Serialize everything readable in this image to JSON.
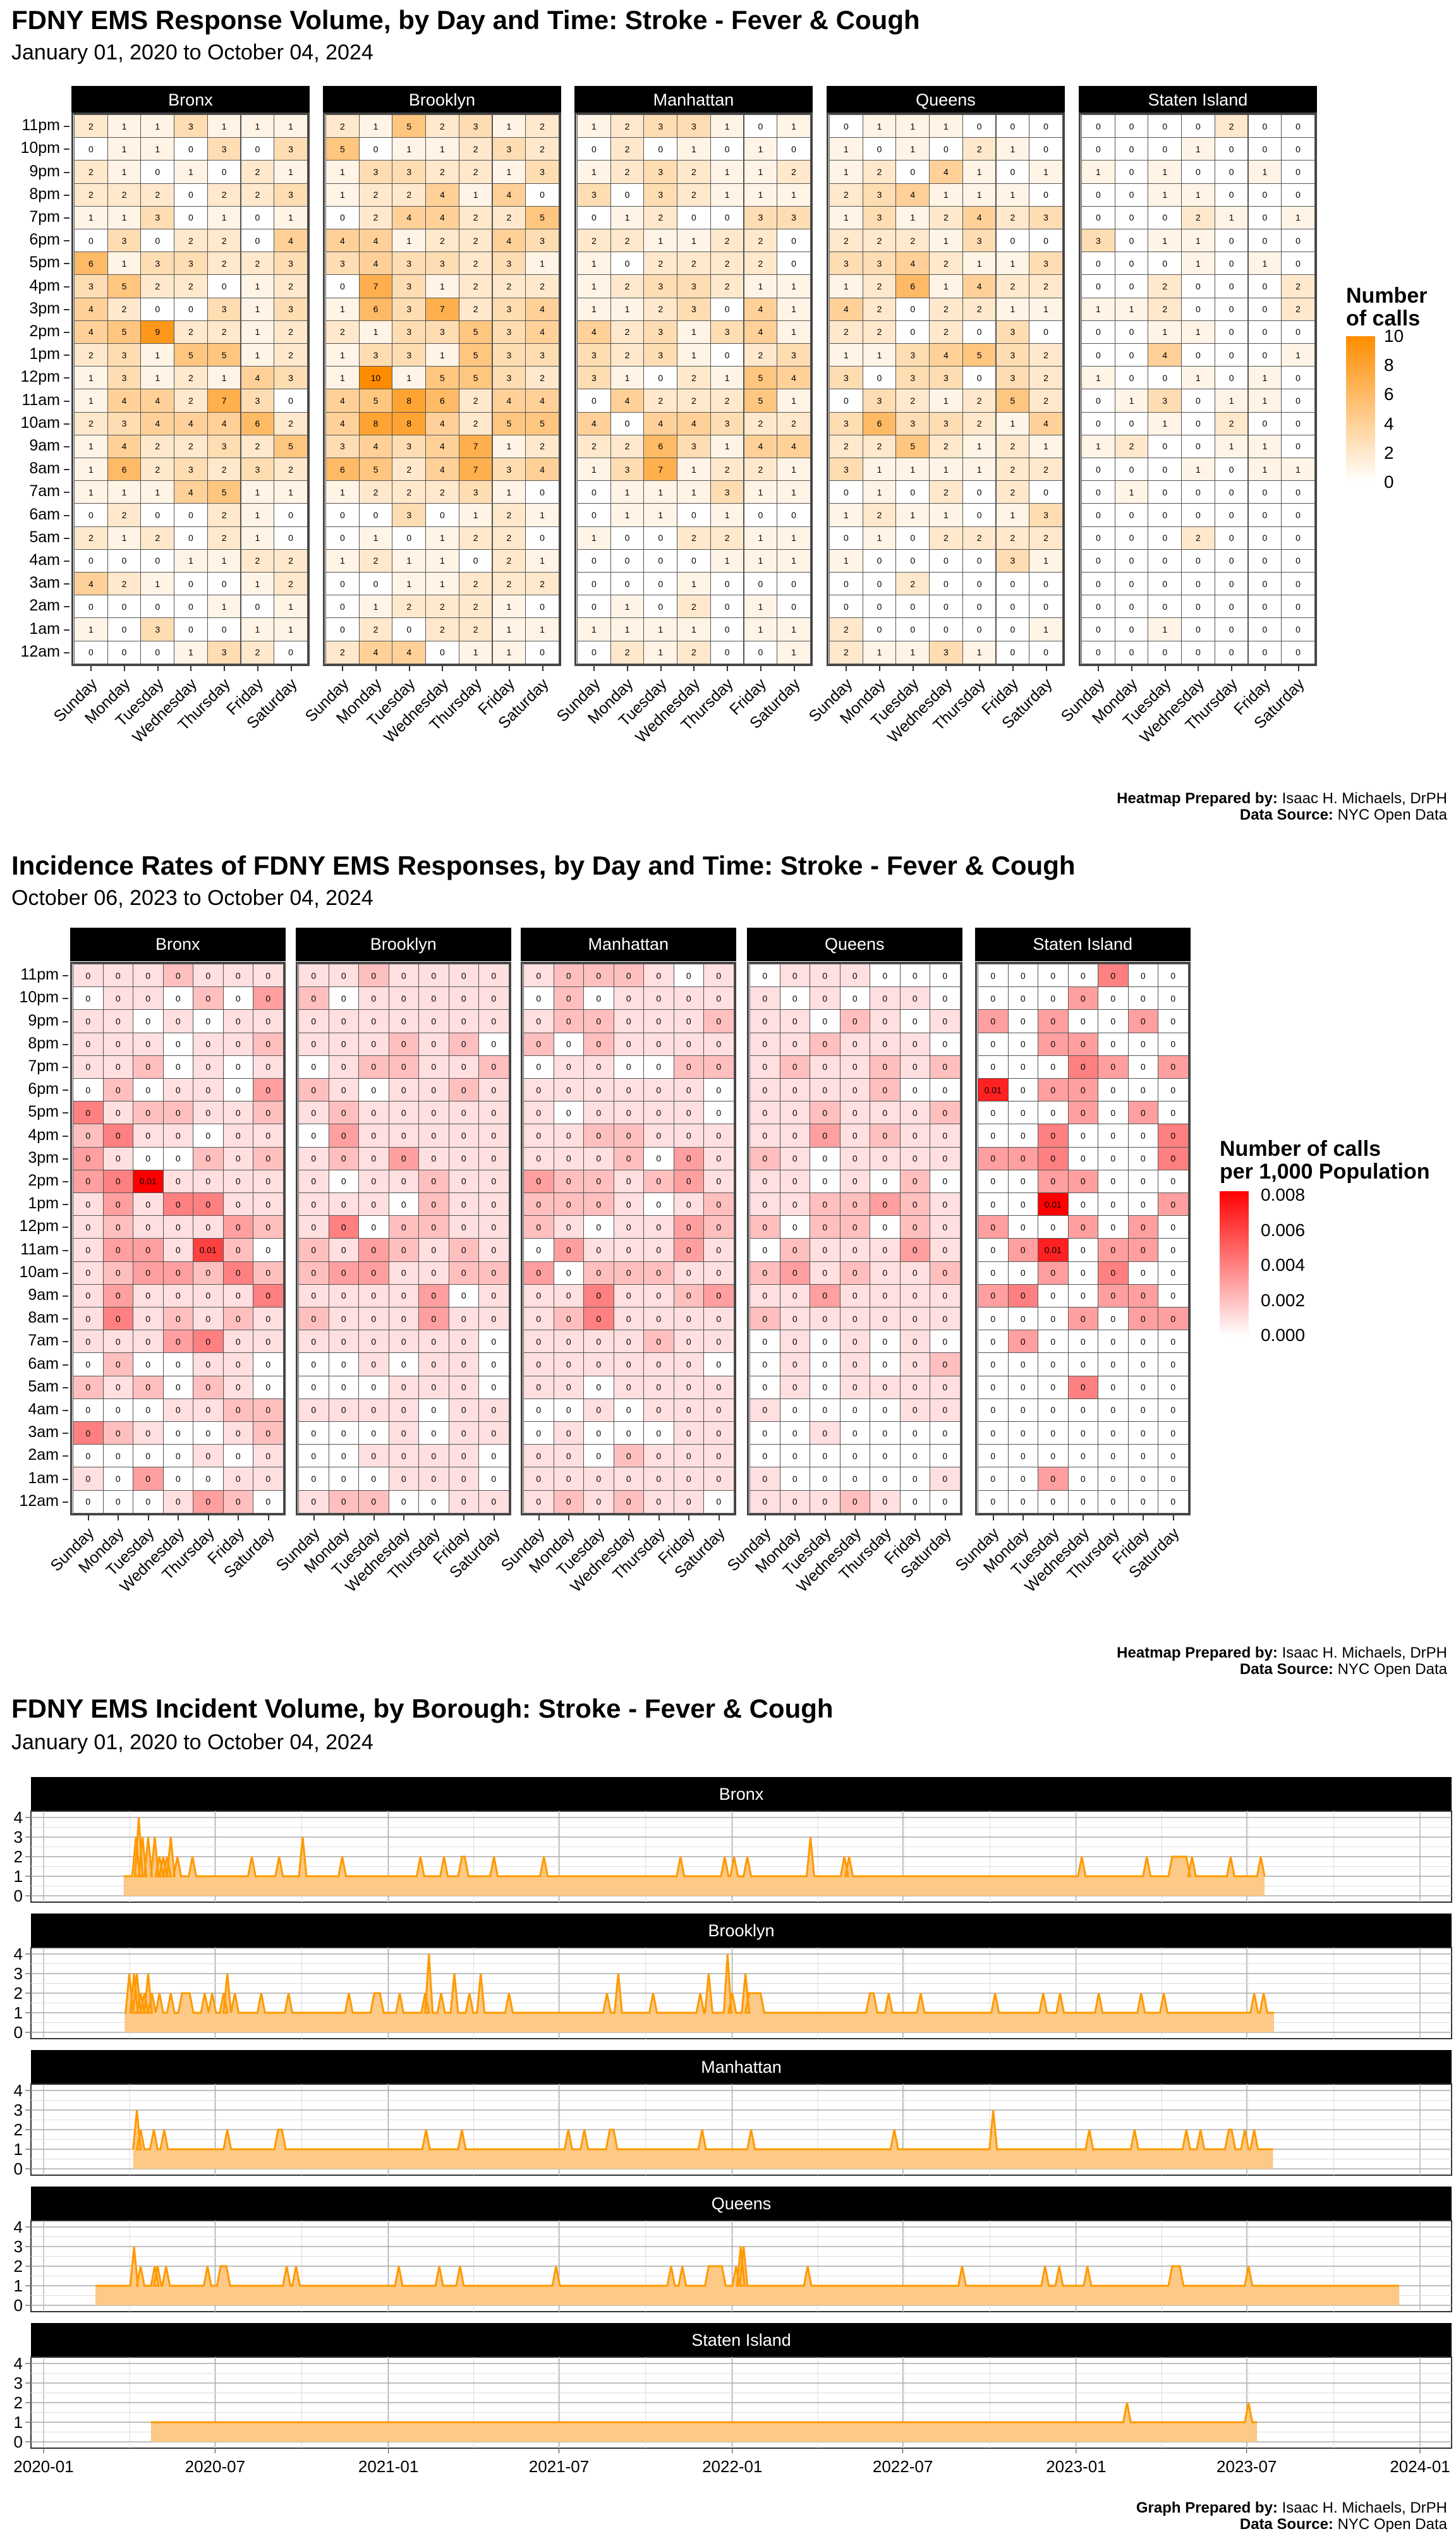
{
  "colors": {
    "count_high": "#FF8C00",
    "rate_high": "#FF0000",
    "line": "#FF9900",
    "area": "#FCC986"
  },
  "days": [
    "Sunday",
    "Monday",
    "Tuesday",
    "Wednesday",
    "Thursday",
    "Friday",
    "Saturday"
  ],
  "hours": [
    "11pm",
    "10pm",
    "9pm",
    "8pm",
    "7pm",
    "6pm",
    "5pm",
    "4pm",
    "3pm",
    "2pm",
    "1pm",
    "12pm",
    "11am",
    "10am",
    "9am",
    "8am",
    "7am",
    "6am",
    "5am",
    "4am",
    "3am",
    "2am",
    "1am",
    "12am"
  ],
  "boroughs": [
    "Bronx",
    "Brooklyn",
    "Manhattan",
    "Queens",
    "Staten Island"
  ],
  "heatmap_credit": {
    "label": "Heatmap Prepared by:",
    "name": "Isaac H. Michaels, DrPH",
    "src_label": "Data Source:",
    "src": "NYC Open Data"
  },
  "graph_credit": {
    "label": "Graph Prepared by:",
    "name": "Isaac H. Michaels, DrPH",
    "src_label": "Data Source:",
    "src": "NYC Open Data"
  },
  "chart_data": [
    {
      "type": "heatmap",
      "title": "FDNY EMS Response Volume, by Day and Time: Stroke - Fever & Cough",
      "subtitle": "January 01, 2020 to October 04, 2024",
      "legend": {
        "title_line1": "Number",
        "title_line2": "of calls",
        "ticks": [
          10,
          8,
          6,
          4,
          2,
          0
        ],
        "range": [
          0,
          10
        ]
      },
      "note": "rows ordered 11pm..12am, columns Sunday..Saturday",
      "values": {
        "Bronx": [
          "2 1 1 3 1 1 1",
          "0 1 1 0 3 0 3",
          "2 1 0 1 0 2 1",
          "2 2 2 0 2 2 3",
          "1 1 3 0 1 0 1",
          "0 3 0 2 2 0 4",
          "6 1 3 3 2 2 3",
          "3 5 2 2 0 1 2",
          "4 2 0 0 3 1 3",
          "4 5 9 2 2 1 2",
          "2 3 1 5 5 1 2",
          "1 3 1 2 1 4 3",
          "1 4 4 2 7 3 0",
          "2 3 4 4 4 6 2",
          "1 4 2 2 3 2 5",
          "1 6 2 3 2 3 2",
          "1 1 1 4 5 1 1",
          "0 2 0 0 2 1 0",
          "2 1 2 0 2 1 0",
          "0 0 0 1 1 2 2",
          "4 2 1 0 0 1 2",
          "0 0 0 0 1 0 1",
          "1 0 3 0 0 1 1",
          "0 0 0 1 3 2 0"
        ],
        "Brooklyn": [
          "2 1 5 2 3 1 2",
          "5 0 1 1 2 3 2",
          "1 3 3 2 2 1 3",
          "1 2 2 4 1 4 0",
          "0 2 4 4 2 2 5",
          "4 4 1 2 2 4 3",
          "3 4 3 3 2 3 1",
          "0 7 3 1 2 2 2",
          "1 6 3 7 2 3 4",
          "2 1 3 3 5 3 4",
          "1 3 3 1 5 3 3",
          "1 10 1 5 5 3 2",
          "4 5 8 6 2 4 4",
          "4 8 8 4 2 5 5",
          "3 4 3 4 7 1 2",
          "6 5 2 4 7 3 4",
          "1 2 2 2 3 1 0",
          "0 0 3 0 1 2 1",
          "0 1 0 1 2 2 0",
          "1 2 1 1 0 2 1",
          "0 0 1 1 2 2 2",
          "0 1 2 2 2 1 0",
          "0 2 0 2 2 1 1",
          "2 4 4 0 1 1 0"
        ],
        "Manhattan": [
          "1 2 3 3 1 0 1",
          "0 2 0 1 0 1 0",
          "1 2 3 2 1 1 2",
          "3 0 3 2 1 1 1",
          "0 1 2 0 0 3 3",
          "2 2 1 1 2 2 0",
          "1 0 2 2 2 2 0",
          "1 2 3 3 2 1 1",
          "1 1 2 3 0 4 1",
          "4 2 3 1 3 4 1",
          "3 2 3 1 0 2 3",
          "3 1 0 2 1 5 4",
          "0 4 2 2 2 5 1",
          "4 0 4 4 3 2 2",
          "2 2 6 3 1 4 4",
          "1 3 7 1 2 2 1",
          "0 1 1 1 3 1 1",
          "0 1 1 0 1 0 0",
          "1 0 0 2 2 1 1",
          "0 0 0 0 1 1 1",
          "0 0 0 1 0 0 0",
          "0 1 0 2 0 1 0",
          "1 1 1 1 0 1 1",
          "0 2 1 2 0 0 1"
        ],
        "Queens": [
          "0 1 1 1 0 0 0",
          "1 0 1 0 2 1 0",
          "1 2 0 4 1 0 1",
          "2 3 4 1 1 1 0",
          "1 3 1 2 4 2 3",
          "2 2 2 1 3 0 0",
          "3 3 4 2 1 1 3",
          "1 2 6 1 4 2 2",
          "4 2 0 2 2 1 1",
          "2 2 0 2 0 3 0",
          "1 1 3 4 5 3 2",
          "3 0 3 3 0 3 2",
          "0 3 2 1 2 5 2",
          "3 6 3 3 2 1 4",
          "2 2 5 2 1 2 1",
          "3 1 1 1 1 2 2",
          "0 1 0 2 0 2 0",
          "1 2 1 1 0 1 3",
          "0 1 0 2 2 2 2",
          "1 0 0 0 0 3 1",
          "0 0 2 0 0 0 0",
          "0 0 0 0 0 0 0",
          "2 0 0 0 0 0 1",
          "2 1 1 3 1 0 0"
        ],
        "Staten Island": [
          "0 0 0 0 2 0 0",
          "0 0 0 1 0 0 0",
          "1 0 1 0 0 1 0",
          "0 0 1 1 0 0 0",
          "0 0 0 2 1 0 1",
          "3 0 1 1 0 0 0",
          "0 0 0 1 0 1 0",
          "0 0 2 0 0 0 2",
          "1 1 2 0 0 0 2",
          "0 0 1 1 0 0 0",
          "0 0 4 0 0 0 1",
          "1 0 0 1 0 1 0",
          "0 1 3 0 1 1 0",
          "0 0 1 0 2 0 0",
          "1 2 0 0 1 1 0",
          "0 0 0 1 0 1 1",
          "0 1 0 0 0 0 0",
          "0 0 0 0 0 0 0",
          "0 0 0 2 0 0 0",
          "0 0 0 0 0 0 0",
          "0 0 0 0 0 0 0",
          "0 0 0 0 0 0 0",
          "0 0 1 0 0 0 0",
          "0 0 0 0 0 0 0"
        ]
      }
    },
    {
      "type": "heatmap",
      "title": "Incidence Rates of FDNY EMS Responses, by Day and Time: Stroke - Fever & Cough",
      "subtitle": "October 06, 2023 to October 04, 2024",
      "legend": {
        "title_line1": "Number of calls",
        "title_line2": "per 1,000 Population",
        "ticks": [
          "0.008",
          "0.006",
          "0.004",
          "0.002",
          "0.000"
        ],
        "range": [
          0,
          0.008
        ]
      },
      "note": "estimated rates, each digit = thousandths of calls per 1,000; cell labels are rates rounded to 2 decimals",
      "rate_unit": 0.001,
      "values": {
        "Bronx": [
          "1112111",
          "0110203",
          "1101011",
          "1110112",
          "1120101",
          "0201103",
          "4122112",
          "2411011",
          "3100212",
          "3481111",
          "1314411",
          "1211132",
          "1331620",
          "1233242",
          "1311114",
          "1412121",
          "1113411",
          "0200110",
          "2120210",
          "0001122",
          "4210012",
          "0000101",
          "1030011",
          "0001320"
        ],
        "Brooklyn": [
          "1121111",
          "2011111",
          "1111111",
          "1112120",
          "0122112",
          "2101121",
          "1211111",
          "0311111",
          "1213111",
          "1011211",
          "1110211",
          "1402211",
          "2132121",
          "2331122",
          "1111301",
          "2111311",
          "1111110",
          "0010110",
          "0001110",
          "1111011",
          "0001011",
          "0011110",
          "0001110",
          "1220011"
        ],
        "Manhattan": [
          "1222101",
          "0201111",
          "1221112",
          "2021111",
          "0110022",
          "1111110",
          "1011110",
          "1122111",
          "1112031",
          "3221231",
          "2221012",
          "2101132",
          "0311131",
          "3022211",
          "1141123",
          "1241111",
          "1111211",
          "1111110",
          "1101111",
          "0010111",
          "0100011",
          "1102111",
          "1111111",
          "1212110"
        ],
        "Queens": [
          "0111000",
          "1010110",
          "1102101",
          "1121110",
          "1211212",
          "1111200",
          "1121112",
          "1131211",
          "2101111",
          "1101020",
          "1122321",
          "2022021",
          "0211131",
          "2312112",
          "1131111",
          "2111111",
          "0101010",
          "0101012",
          "0101111",
          "1000011",
          "0010000",
          "0000000",
          "1000001",
          "1112100"
        ],
        "Staten Island": [
          "0000400",
          "0003000",
          "3030030",
          "0033000",
          "0004303",
          "7033000",
          "0003030",
          "0040004",
          "3340004",
          "0033000",
          "0080003",
          "3003030",
          "0370330",
          "0030400",
          "3400330",
          "0003033",
          "0300000",
          "0000000",
          "0004000",
          "0000000",
          "0000000",
          "0000000",
          "0030000",
          "0000000"
        ]
      }
    },
    {
      "type": "area",
      "title": "FDNY EMS Incident Volume, by Borough: Stroke - Fever & Cough",
      "subtitle": "January 01, 2020 to October 04, 2024",
      "x_origin": "2020-01-01",
      "x_unit": "days since origin",
      "ylim": [
        0,
        4
      ],
      "yticks": [
        0,
        1,
        2,
        3,
        4
      ],
      "xticks": [
        {
          "day": 0,
          "label": "2020-01"
        },
        {
          "day": 182,
          "label": "2020-07"
        },
        {
          "day": 366,
          "label": "2021-01"
        },
        {
          "day": 547,
          "label": "2021-07"
        },
        {
          "day": 731,
          "label": "2022-01"
        },
        {
          "day": 912,
          "label": "2022-07"
        },
        {
          "day": 1096,
          "label": "2023-01"
        },
        {
          "day": 1277,
          "label": "2023-07"
        },
        {
          "day": 1461,
          "label": "2024-01"
        }
      ],
      "baseline": 1,
      "series": [
        {
          "name": "Bronx",
          "start": 85,
          "end": 1296,
          "spikes": [
            [
              98,
              3
            ],
            [
              101,
              4
            ],
            [
              105,
              3
            ],
            [
              111,
              3
            ],
            [
              118,
              3
            ],
            [
              123,
              2
            ],
            [
              127,
              2
            ],
            [
              131,
              2
            ],
            [
              135,
              3
            ],
            [
              142,
              2
            ],
            [
              158,
              2
            ],
            [
              221,
              2
            ],
            [
              250,
              2
            ],
            [
              275,
              3
            ],
            [
              317,
              2
            ],
            [
              400,
              2
            ],
            [
              425,
              2
            ],
            [
              444,
              2,
              447
            ],
            [
              478,
              2
            ],
            [
              531,
              2
            ],
            [
              676,
              2
            ],
            [
              723,
              2
            ],
            [
              733,
              2
            ],
            [
              747,
              2
            ],
            [
              814,
              3
            ],
            [
              850,
              2
            ],
            [
              855,
              2
            ],
            [
              1102,
              2
            ],
            [
              1171,
              2
            ],
            [
              1198,
              2,
              1213
            ],
            [
              1219,
              2
            ],
            [
              1260,
              2
            ],
            [
              1292,
              2
            ]
          ]
        },
        {
          "name": "Brooklyn",
          "start": 86,
          "end": 1306,
          "spikes": [
            [
              91,
              3
            ],
            [
              96,
              3
            ],
            [
              99,
              3
            ],
            [
              103,
              2
            ],
            [
              107,
              2
            ],
            [
              111,
              3
            ],
            [
              115,
              2
            ],
            [
              123,
              2
            ],
            [
              135,
              2
            ],
            [
              147,
              2,
              155
            ],
            [
              171,
              2
            ],
            [
              179,
              2
            ],
            [
              191,
              2
            ],
            [
              195,
              3
            ],
            [
              203,
              2
            ],
            [
              231,
              2
            ],
            [
              260,
              2
            ],
            [
              324,
              2
            ],
            [
              351,
              2,
              357
            ],
            [
              378,
              2
            ],
            [
              405,
              2
            ],
            [
              409,
              4
            ],
            [
              422,
              2
            ],
            [
              436,
              3
            ],
            [
              452,
              2
            ],
            [
              464,
              3
            ],
            [
              494,
              2
            ],
            [
              598,
              2
            ],
            [
              610,
              3
            ],
            [
              647,
              2
            ],
            [
              697,
              2
            ],
            [
              706,
              3
            ],
            [
              726,
              4
            ],
            [
              731,
              2
            ],
            [
              745,
              3
            ],
            [
              749,
              2,
              761
            ],
            [
              877,
              2,
              881
            ],
            [
              897,
              2
            ],
            [
              931,
              2
            ],
            [
              1010,
              2
            ],
            [
              1061,
              2
            ],
            [
              1079,
              2
            ],
            [
              1120,
              2
            ],
            [
              1165,
              2
            ],
            [
              1189,
              2
            ],
            [
              1285,
              2
            ],
            [
              1295,
              2
            ]
          ]
        },
        {
          "name": "Manhattan",
          "start": 95,
          "end": 1305,
          "spikes": [
            [
              99,
              3
            ],
            [
              103,
              2
            ],
            [
              117,
              2
            ],
            [
              128,
              2
            ],
            [
              195,
              2
            ],
            [
              249,
              2,
              253
            ],
            [
              406,
              2
            ],
            [
              444,
              2
            ],
            [
              557,
              2
            ],
            [
              574,
              2
            ],
            [
              601,
              2,
              605
            ],
            [
              699,
              2
            ],
            [
              751,
              2
            ],
            [
              903,
              2
            ],
            [
              1008,
              3
            ],
            [
              1110,
              2
            ],
            [
              1158,
              2
            ],
            [
              1213,
              2
            ],
            [
              1228,
              2
            ],
            [
              1258,
              2,
              1261
            ],
            [
              1275,
              2
            ],
            [
              1285,
              2
            ]
          ]
        },
        {
          "name": "Queens",
          "start": 55,
          "end": 1439,
          "spikes": [
            [
              96,
              3
            ],
            [
              103,
              2
            ],
            [
              118,
              2
            ],
            [
              121,
              2
            ],
            [
              130,
              2
            ],
            [
              174,
              2
            ],
            [
              188,
              2,
              194
            ],
            [
              258,
              2
            ],
            [
              268,
              2
            ],
            [
              377,
              2
            ],
            [
              420,
              2
            ],
            [
              442,
              2
            ],
            [
              544,
              2
            ],
            [
              666,
              2
            ],
            [
              678,
              2
            ],
            [
              706,
              2,
              720
            ],
            [
              735,
              2
            ],
            [
              740,
              3
            ],
            [
              743,
              3
            ],
            [
              811,
              2
            ],
            [
              975,
              2
            ],
            [
              1063,
              2
            ],
            [
              1078,
              2
            ],
            [
              1108,
              2
            ],
            [
              1198,
              2,
              1206
            ],
            [
              1279,
              2
            ]
          ]
        },
        {
          "name": "Staten Island",
          "start": 114,
          "end": 1288,
          "spikes": [
            [
              1150,
              2
            ],
            [
              1279,
              2
            ]
          ]
        }
      ]
    }
  ]
}
